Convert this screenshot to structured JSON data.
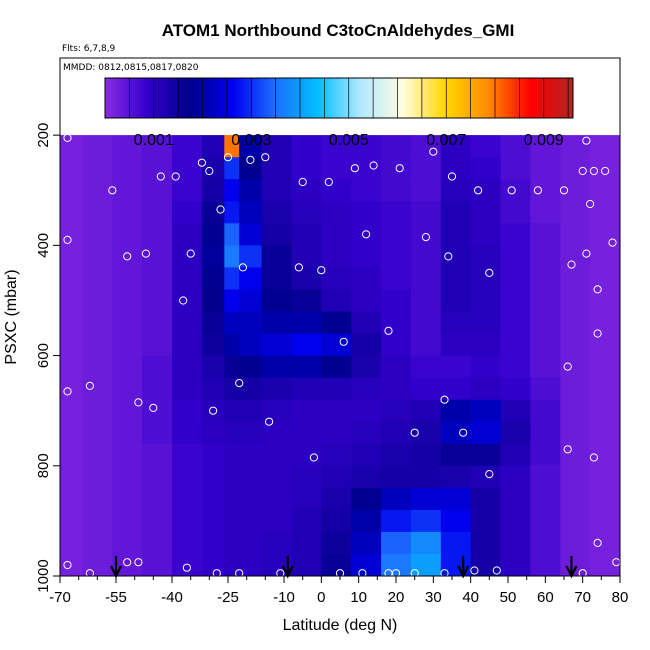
{
  "chart_data": {
    "type": "heatmap",
    "title": "ATOM1 Northbound C3toCnAldehydes_GMI",
    "flights_note": "Flts: 6,7,8,9",
    "dates_note": "MMDD: 0812,0815,0817,0820",
    "xlabel": "Latitude (deg N)",
    "ylabel": "PSXC (mbar)",
    "xlim": [
      -70,
      80
    ],
    "ylim": [
      1000,
      60
    ],
    "x_ticks": [
      -70,
      -55,
      -40,
      -25,
      -10,
      0,
      10,
      20,
      30,
      40,
      50,
      60,
      70,
      80
    ],
    "x_tick_labels": [
      "-70",
      "-55",
      "-40",
      "-25",
      "-10",
      "0",
      "10",
      "20",
      "30",
      "40",
      "50",
      "60",
      "70",
      "80"
    ],
    "x_minor_ticks": [
      -65,
      -60,
      -50,
      -45,
      -35,
      -30,
      -20,
      -15,
      -5,
      5,
      15,
      25,
      35,
      45,
      55,
      65,
      75
    ],
    "y_ticks": [
      200,
      400,
      600,
      800,
      1000
    ],
    "y_tick_labels": [
      "200",
      "400",
      "600",
      "800",
      "1000"
    ],
    "colorbar": {
      "min": 0,
      "max": 0.0096,
      "ticks": [
        0.001,
        0.003,
        0.005,
        0.007,
        0.009
      ],
      "tick_labels": [
        "0.001",
        "0.003",
        "0.005",
        "0.007",
        "0.009"
      ],
      "stops": [
        "#8a2be2",
        "#3300cc",
        "#00008b",
        "#0000ee",
        "#1e6fff",
        "#00bfff",
        "#b0e8ff",
        "#fffde0",
        "#ffd700",
        "#ff8c00",
        "#ff0000",
        "#b22222"
      ]
    },
    "field": {
      "description_levels": "approximate mixing ratio values by latitude band and pressure level",
      "lat_bands": [
        -68,
        -60,
        -52,
        -44,
        -36,
        -28,
        -24,
        -20,
        -12,
        -4,
        4,
        12,
        20,
        28,
        36,
        44,
        52,
        60,
        68,
        76
      ],
      "pressure_levels": [
        220,
        260,
        300,
        340,
        380,
        420,
        460,
        500,
        540,
        580,
        620,
        660,
        700,
        740,
        780,
        820,
        860,
        900,
        940,
        980
      ],
      "values": [
        [
          0.0002,
          0.0003,
          0.0004,
          0.0005,
          0.0008,
          0.0012,
          0.008,
          0.002,
          0.0012,
          0.0009,
          0.0008,
          0.0008,
          0.0007,
          0.0006,
          0.001,
          0.0008,
          0.0006,
          0.0004,
          0.0003,
          0.0002
        ],
        [
          0.0002,
          0.0003,
          0.0004,
          0.0005,
          0.0008,
          0.0013,
          0.003,
          0.0018,
          0.0012,
          0.0009,
          0.0008,
          0.0008,
          0.0007,
          0.0006,
          0.001,
          0.0009,
          0.0006,
          0.0004,
          0.0003,
          0.0002
        ],
        [
          0.0002,
          0.0003,
          0.0004,
          0.0005,
          0.0008,
          0.0014,
          0.0026,
          0.002,
          0.0012,
          0.001,
          0.0009,
          0.0008,
          0.0007,
          0.0006,
          0.0011,
          0.001,
          0.0007,
          0.0004,
          0.0003,
          0.0002
        ],
        [
          0.0002,
          0.0003,
          0.0004,
          0.0005,
          0.0009,
          0.0016,
          0.0028,
          0.0022,
          0.0013,
          0.0011,
          0.001,
          0.0009,
          0.0008,
          0.0007,
          0.0012,
          0.001,
          0.0007,
          0.0004,
          0.0003,
          0.0002
        ],
        [
          0.0002,
          0.0003,
          0.0004,
          0.0005,
          0.001,
          0.0018,
          0.0034,
          0.0024,
          0.0014,
          0.0012,
          0.001,
          0.0009,
          0.0008,
          0.0007,
          0.0012,
          0.001,
          0.0008,
          0.0005,
          0.0003,
          0.0002
        ],
        [
          0.0002,
          0.0003,
          0.0004,
          0.0005,
          0.001,
          0.0019,
          0.0036,
          0.003,
          0.0016,
          0.0012,
          0.001,
          0.0009,
          0.0008,
          0.0007,
          0.0012,
          0.0011,
          0.0008,
          0.0005,
          0.0003,
          0.0002
        ],
        [
          0.0002,
          0.0003,
          0.0004,
          0.0005,
          0.001,
          0.0018,
          0.003,
          0.0026,
          0.0016,
          0.0013,
          0.0011,
          0.001,
          0.0008,
          0.0007,
          0.0012,
          0.0011,
          0.0008,
          0.0005,
          0.0003,
          0.0002
        ],
        [
          0.0002,
          0.0003,
          0.0004,
          0.0005,
          0.001,
          0.0017,
          0.0026,
          0.0024,
          0.0018,
          0.0016,
          0.0012,
          0.001,
          0.0009,
          0.0007,
          0.0012,
          0.0011,
          0.0008,
          0.0005,
          0.0003,
          0.0002
        ],
        [
          0.0002,
          0.0003,
          0.0004,
          0.0005,
          0.001,
          0.0016,
          0.0022,
          0.0022,
          0.002,
          0.002,
          0.0018,
          0.0012,
          0.0009,
          0.0007,
          0.0011,
          0.0011,
          0.0008,
          0.0005,
          0.0003,
          0.0002
        ],
        [
          0.0002,
          0.0003,
          0.0004,
          0.0005,
          0.001,
          0.0015,
          0.002,
          0.0022,
          0.0024,
          0.0026,
          0.0024,
          0.0014,
          0.0009,
          0.0007,
          0.001,
          0.001,
          0.0008,
          0.0005,
          0.0003,
          0.0002
        ],
        [
          0.0002,
          0.0003,
          0.0004,
          0.0006,
          0.001,
          0.0013,
          0.0016,
          0.0018,
          0.002,
          0.002,
          0.0018,
          0.0013,
          0.001,
          0.0008,
          0.0008,
          0.0009,
          0.0008,
          0.0005,
          0.0003,
          0.0002
        ],
        [
          0.0002,
          0.0003,
          0.0004,
          0.0006,
          0.001,
          0.0012,
          0.0014,
          0.0014,
          0.0013,
          0.0012,
          0.0012,
          0.0011,
          0.001,
          0.0009,
          0.0009,
          0.001,
          0.0009,
          0.0006,
          0.0003,
          0.0002
        ],
        [
          0.0002,
          0.0003,
          0.0004,
          0.0006,
          0.0009,
          0.0011,
          0.0012,
          0.0012,
          0.0011,
          0.001,
          0.001,
          0.001,
          0.0011,
          0.0012,
          0.002,
          0.0022,
          0.0012,
          0.0007,
          0.0003,
          0.0002
        ],
        [
          0.0002,
          0.0003,
          0.0004,
          0.0006,
          0.0009,
          0.001,
          0.0011,
          0.0011,
          0.001,
          0.001,
          0.001,
          0.0011,
          0.0012,
          0.0013,
          0.0022,
          0.0024,
          0.0013,
          0.0007,
          0.0003,
          0.0002
        ],
        [
          0.0002,
          0.0003,
          0.0004,
          0.0005,
          0.0008,
          0.0009,
          0.001,
          0.001,
          0.001,
          0.001,
          0.0011,
          0.0012,
          0.0013,
          0.0014,
          0.0016,
          0.0016,
          0.0012,
          0.0007,
          0.0003,
          0.0002
        ],
        [
          0.0002,
          0.0003,
          0.0004,
          0.0005,
          0.0008,
          0.0009,
          0.001,
          0.001,
          0.001,
          0.0011,
          0.0012,
          0.0013,
          0.0014,
          0.0014,
          0.0013,
          0.0012,
          0.001,
          0.0006,
          0.0003,
          0.0002
        ],
        [
          0.0002,
          0.0003,
          0.0004,
          0.0005,
          0.0008,
          0.0009,
          0.001,
          0.001,
          0.001,
          0.0011,
          0.0013,
          0.0018,
          0.0022,
          0.0024,
          0.0024,
          0.0014,
          0.001,
          0.0006,
          0.0003,
          0.0002
        ],
        [
          0.0002,
          0.0003,
          0.0004,
          0.0005,
          0.0008,
          0.0009,
          0.001,
          0.001,
          0.001,
          0.0012,
          0.0014,
          0.002,
          0.0028,
          0.003,
          0.0026,
          0.0014,
          0.001,
          0.0006,
          0.0003,
          0.0002
        ],
        [
          0.0002,
          0.0003,
          0.0004,
          0.0005,
          0.0008,
          0.0009,
          0.001,
          0.001,
          0.0011,
          0.0012,
          0.0015,
          0.0022,
          0.0034,
          0.0038,
          0.0028,
          0.0014,
          0.001,
          0.0006,
          0.0003,
          0.0002
        ],
        [
          0.0002,
          0.0003,
          0.0004,
          0.0005,
          0.0008,
          0.0009,
          0.001,
          0.001,
          0.0011,
          0.0012,
          0.0016,
          0.0024,
          0.0036,
          0.004,
          0.0028,
          0.0014,
          0.001,
          0.0006,
          0.0003,
          0.0002
        ]
      ]
    },
    "observations": [
      {
        "lat": -68,
        "p": 205
      },
      {
        "lat": -68,
        "p": 390
      },
      {
        "lat": -68,
        "p": 665
      },
      {
        "lat": -68,
        "p": 980
      },
      {
        "lat": -62,
        "p": 655
      },
      {
        "lat": -62,
        "p": 995
      },
      {
        "lat": -56,
        "p": 300
      },
      {
        "lat": -52,
        "p": 420
      },
      {
        "lat": -52,
        "p": 975
      },
      {
        "lat": -49,
        "p": 975
      },
      {
        "lat": -49,
        "p": 685
      },
      {
        "lat": -47,
        "p": 415
      },
      {
        "lat": -45,
        "p": 695
      },
      {
        "lat": -43,
        "p": 275
      },
      {
        "lat": -39,
        "p": 275
      },
      {
        "lat": -37,
        "p": 500
      },
      {
        "lat": -36,
        "p": 985
      },
      {
        "lat": -35,
        "p": 415
      },
      {
        "lat": -32,
        "p": 250
      },
      {
        "lat": -30,
        "p": 265
      },
      {
        "lat": -29,
        "p": 700
      },
      {
        "lat": -28,
        "p": 995
      },
      {
        "lat": -27,
        "p": 335
      },
      {
        "lat": -25,
        "p": 240
      },
      {
        "lat": -22,
        "p": 650
      },
      {
        "lat": -22,
        "p": 995
      },
      {
        "lat": -21,
        "p": 440
      },
      {
        "lat": -19,
        "p": 245
      },
      {
        "lat": -15,
        "p": 240
      },
      {
        "lat": -14,
        "p": 720
      },
      {
        "lat": -11,
        "p": 995
      },
      {
        "lat": -6,
        "p": 440
      },
      {
        "lat": -5,
        "p": 285
      },
      {
        "lat": -2,
        "p": 785
      },
      {
        "lat": 0,
        "p": 445
      },
      {
        "lat": 2,
        "p": 285
      },
      {
        "lat": 5,
        "p": 995
      },
      {
        "lat": 6,
        "p": 575
      },
      {
        "lat": 9,
        "p": 260
      },
      {
        "lat": 11,
        "p": 995
      },
      {
        "lat": 12,
        "p": 380
      },
      {
        "lat": 14,
        "p": 255
      },
      {
        "lat": 18,
        "p": 555
      },
      {
        "lat": 18,
        "p": 995
      },
      {
        "lat": 20,
        "p": 995
      },
      {
        "lat": 21,
        "p": 260
      },
      {
        "lat": 25,
        "p": 740
      },
      {
        "lat": 25,
        "p": 995
      },
      {
        "lat": 28,
        "p": 385
      },
      {
        "lat": 30,
        "p": 230
      },
      {
        "lat": 33,
        "p": 680
      },
      {
        "lat": 33,
        "p": 995
      },
      {
        "lat": 34,
        "p": 420
      },
      {
        "lat": 35,
        "p": 275
      },
      {
        "lat": 38,
        "p": 740
      },
      {
        "lat": 41,
        "p": 990
      },
      {
        "lat": 42,
        "p": 300
      },
      {
        "lat": 45,
        "p": 815
      },
      {
        "lat": 45,
        "p": 450
      },
      {
        "lat": 47,
        "p": 990
      },
      {
        "lat": 51,
        "p": 300
      },
      {
        "lat": 58,
        "p": 300
      },
      {
        "lat": 65,
        "p": 300
      },
      {
        "lat": 66,
        "p": 620
      },
      {
        "lat": 66,
        "p": 770
      },
      {
        "lat": 67,
        "p": 435
      },
      {
        "lat": 70,
        "p": 265
      },
      {
        "lat": 70,
        "p": 995
      },
      {
        "lat": 71,
        "p": 210
      },
      {
        "lat": 71,
        "p": 415
      },
      {
        "lat": 72,
        "p": 325
      },
      {
        "lat": 73,
        "p": 265
      },
      {
        "lat": 73,
        "p": 785
      },
      {
        "lat": 74,
        "p": 480
      },
      {
        "lat": 74,
        "p": 560
      },
      {
        "lat": 74,
        "p": 940
      },
      {
        "lat": 76,
        "p": 265
      },
      {
        "lat": 78,
        "p": 395
      },
      {
        "lat": 79,
        "p": 975
      }
    ],
    "arrows_lat": [
      -55,
      -9,
      38,
      67
    ]
  }
}
